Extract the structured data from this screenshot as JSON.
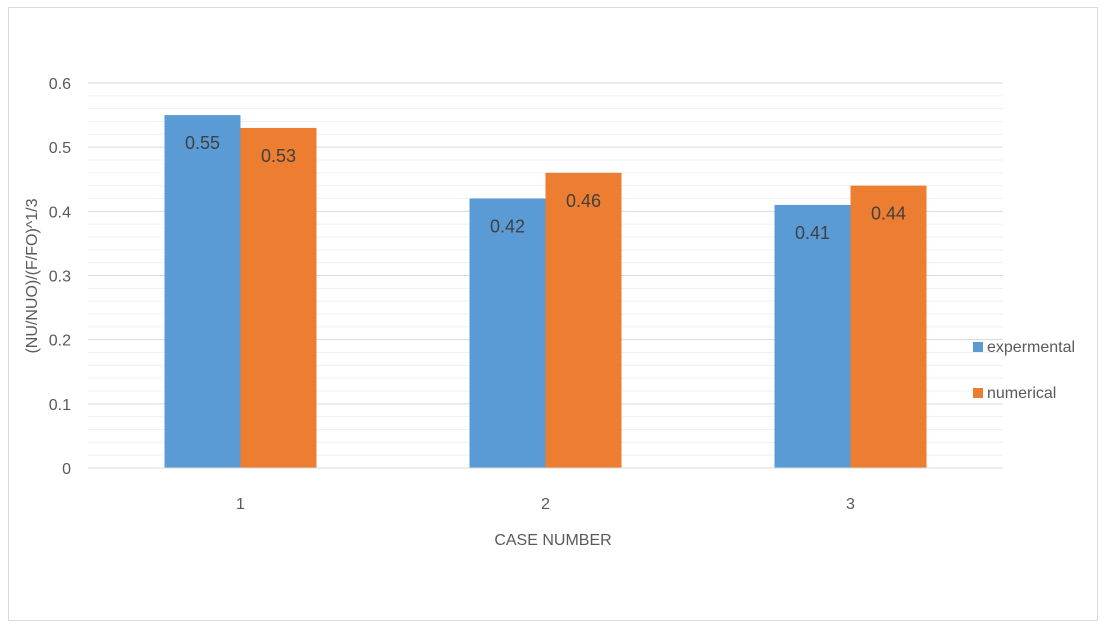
{
  "chart_data": {
    "type": "bar",
    "categories": [
      "1",
      "2",
      "3"
    ],
    "series": [
      {
        "name": "expermental",
        "values": [
          0.55,
          0.42,
          0.41
        ],
        "color": "#5b9bd5"
      },
      {
        "name": "numerical",
        "values": [
          0.53,
          0.46,
          0.44
        ],
        "color": "#ed7d31"
      }
    ],
    "xlabel": "CASE NUMBER",
    "ylabel": "(NU/NUO)/(F/FO)^1/3",
    "ylim": [
      0,
      0.6
    ],
    "yticks": [
      "0",
      "0.1",
      "0.2",
      "0.3",
      "0.4",
      "0.5",
      "0.6"
    ],
    "data_labels": [
      [
        "0.55",
        "0.42",
        "0.41"
      ],
      [
        "0.53",
        "0.46",
        "0.44"
      ]
    ],
    "grid": true,
    "legend": "right"
  }
}
